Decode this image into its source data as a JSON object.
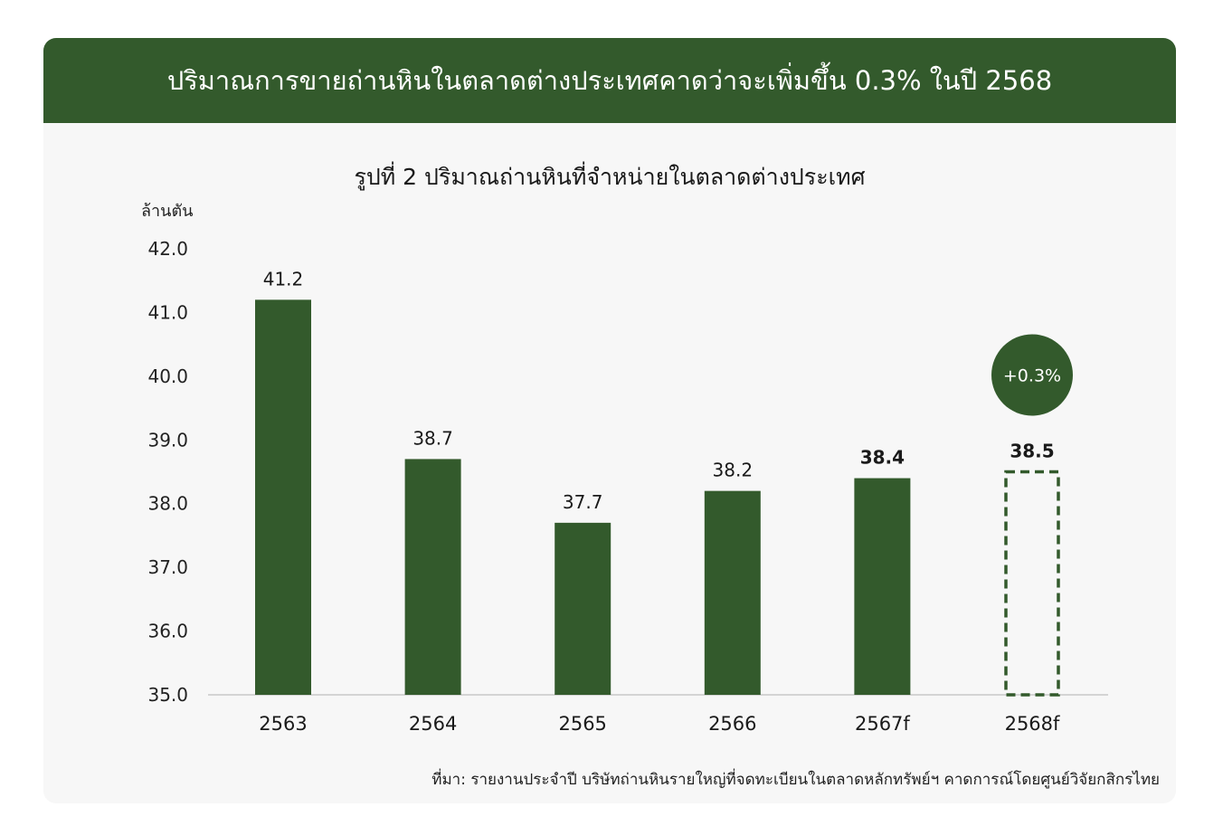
{
  "banner": {
    "title": "ปริมาณการขายถ่านหินในตลาดต่างประเทศคาดว่าจะเพิ่มขึ้น 0.3% ในปี 2568"
  },
  "chart_data": {
    "type": "bar",
    "title": "รูปที่ 2 ปริมาณถ่านหินที่จำหน่ายในตลาดต่างประเทศ",
    "ylabel": "ล้านตัน",
    "xlabel": "",
    "categories": [
      "2563",
      "2564",
      "2565",
      "2566",
      "2567f",
      "2568f"
    ],
    "values": [
      41.2,
      38.7,
      37.7,
      38.2,
      38.4,
      38.5
    ],
    "value_labels": [
      "41.2",
      "38.7",
      "37.7",
      "38.2",
      "38.4",
      "38.5"
    ],
    "bold_labels": [
      false,
      false,
      false,
      false,
      true,
      true
    ],
    "forecast_dashed": [
      false,
      false,
      false,
      false,
      false,
      true
    ],
    "ylim": [
      35.0,
      42.0
    ],
    "yticks": [
      "35.0",
      "36.0",
      "37.0",
      "38.0",
      "39.0",
      "40.0",
      "41.0",
      "42.0"
    ],
    "grid": false,
    "annotation": {
      "text": "+0.3%",
      "category": "2568f"
    },
    "bar_color": "#335a2c"
  },
  "footer": {
    "source": "ที่มา: รายงานประจำปี บริษัทถ่านหินรายใหญ่ที่จดทะเบียนในตลาดหลักทรัพย์ฯ คาดการณ์โดยศูนย์วิจัยกสิกรไทย"
  }
}
